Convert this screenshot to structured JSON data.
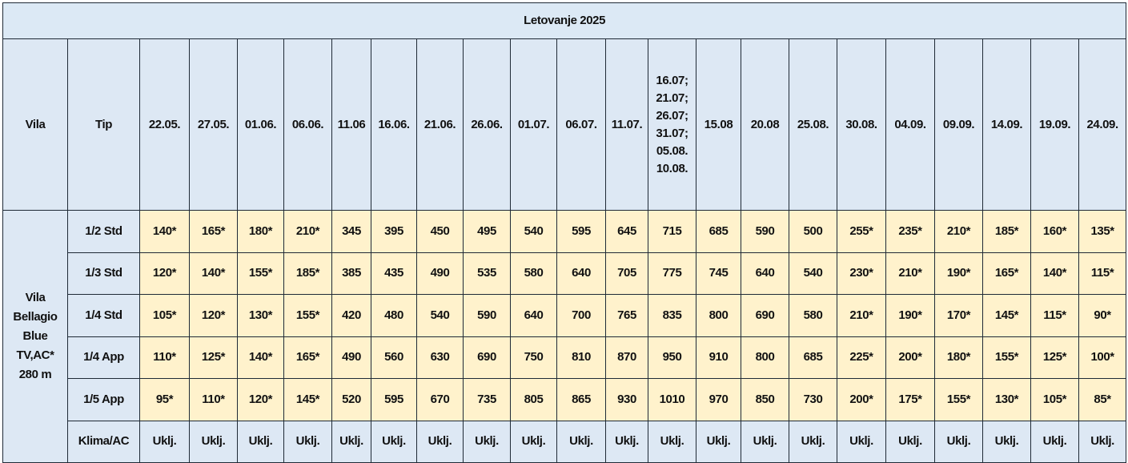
{
  "title": "Letovanje 2025",
  "table": {
    "headers": [
      "Vila",
      "Tip",
      "22.05.",
      "27.05.",
      "01.06.",
      "06.06.",
      "11.06",
      "16.06.",
      "21.06.",
      "26.06.",
      "01.07.",
      "06.07.",
      "11.07.",
      [
        "16.07;",
        "21.07;",
        "26.07;",
        "31.07;",
        "05.08.",
        "10.08."
      ],
      "15.08",
      "20.08",
      "25.08.",
      "30.08.",
      "04.09.",
      "09.09.",
      "14.09.",
      "19.09.",
      "24.09."
    ],
    "villa": [
      "Vila",
      "Bellagio",
      "Blue",
      "TV,AC*",
      "280 m"
    ],
    "rows": [
      [
        "1/2 Std",
        "140*",
        "165*",
        "180*",
        "210*",
        "345",
        "395",
        "450",
        "495",
        "540",
        "595",
        "645",
        "715",
        "685",
        "590",
        "500",
        "255*",
        "235*",
        "210*",
        "185*",
        "160*",
        "135*"
      ],
      [
        "1/3 Std",
        "120*",
        "140*",
        "155*",
        "185*",
        "385",
        "435",
        "490",
        "535",
        "580",
        "640",
        "705",
        "775",
        "745",
        "640",
        "540",
        "230*",
        "210*",
        "190*",
        "165*",
        "140*",
        "115*"
      ],
      [
        "1/4 Std",
        "105*",
        "120*",
        "130*",
        "155*",
        "420",
        "480",
        "540",
        "590",
        "640",
        "700",
        "765",
        "835",
        "800",
        "690",
        "580",
        "210*",
        "190*",
        "170*",
        "145*",
        "115*",
        "90*"
      ],
      [
        "1/4 App",
        "110*",
        "125*",
        "140*",
        "165*",
        "490",
        "560",
        "630",
        "690",
        "750",
        "810",
        "870",
        "950",
        "910",
        "800",
        "685",
        "225*",
        "200*",
        "180*",
        "155*",
        "125*",
        "100*"
      ],
      [
        "1/5 App",
        "95*",
        "110*",
        "120*",
        "145*",
        "520",
        "595",
        "670",
        "735",
        "805",
        "865",
        "930",
        "1010",
        "970",
        "850",
        "730",
        "200*",
        "175*",
        "155*",
        "130*",
        "105*",
        "85*"
      ],
      [
        "Klima/AC",
        "Uklj.",
        "Uklj.",
        "Uklj.",
        "Uklj.",
        "Uklj.",
        "Uklj.",
        "Uklj.",
        "Uklj.",
        "Uklj.",
        "Uklj.",
        "Uklj.",
        "Uklj.",
        "Uklj.",
        "Uklj.",
        "Uklj.",
        "Uklj.",
        "Uklj.",
        "Uklj.",
        "Uklj.",
        "Uklj.",
        "Uklj."
      ]
    ]
  }
}
